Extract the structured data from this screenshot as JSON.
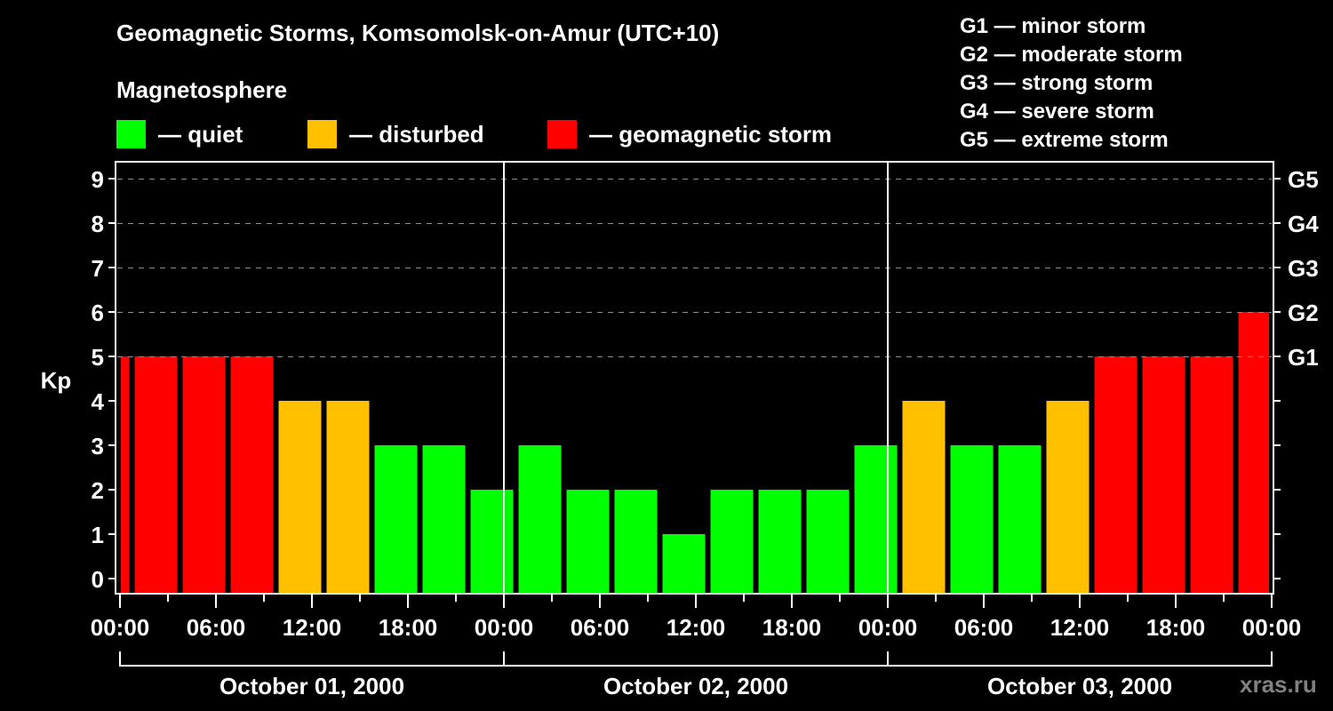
{
  "header": {
    "title": "Geomagnetic Storms, Komsomolsk-on-Amur (UTC+10)",
    "subtitle": "Magnetosphere"
  },
  "legend": [
    {
      "label": "— quiet",
      "color": "#00ff00"
    },
    {
      "label": "— disturbed",
      "color": "#ffc000"
    },
    {
      "label": "— geomagnetic storm",
      "color": "#ff0000"
    }
  ],
  "g_legend": [
    "G1 — minor storm",
    "G2 — moderate storm",
    "G3 — strong storm",
    "G4 — severe storm",
    "G5 — extreme storm"
  ],
  "watermark": "xras.ru",
  "chart_data": {
    "type": "bar",
    "title": "Geomagnetic Storms, Komsomolsk-on-Amur (UTC+10)",
    "ylabel": "Kp",
    "xlabel": "",
    "ylim": [
      0,
      9
    ],
    "yticks": [
      0,
      1,
      2,
      3,
      4,
      5,
      6,
      7,
      8,
      9
    ],
    "y2ticks": [
      {
        "kp": 5,
        "label": "G1"
      },
      {
        "kp": 6,
        "label": "G2"
      },
      {
        "kp": 7,
        "label": "G3"
      },
      {
        "kp": 8,
        "label": "G4"
      },
      {
        "kp": 9,
        "label": "G5"
      }
    ],
    "xticks": [
      "00:00",
      "06:00",
      "12:00",
      "18:00",
      "00:00",
      "06:00",
      "12:00",
      "18:00",
      "00:00",
      "06:00",
      "12:00",
      "18:00",
      "00:00"
    ],
    "days": [
      "October 01, 2000",
      "October 02, 2000",
      "October 03, 2000"
    ],
    "grid": "dashed horizontal at Kp 5-9",
    "interval_hours": 3,
    "first_bar_start_hour": -2.25,
    "values": [
      5,
      5,
      5,
      5,
      4,
      4,
      3,
      3,
      2,
      3,
      2,
      2,
      1,
      2,
      2,
      2,
      3,
      4,
      3,
      3,
      4,
      5,
      5,
      5,
      6
    ],
    "colors": {
      "quiet": "#00ff00",
      "disturbed": "#ffc000",
      "storm": "#ff0000"
    },
    "thresholds": {
      "disturbed_min": 4,
      "storm_min": 5
    }
  }
}
